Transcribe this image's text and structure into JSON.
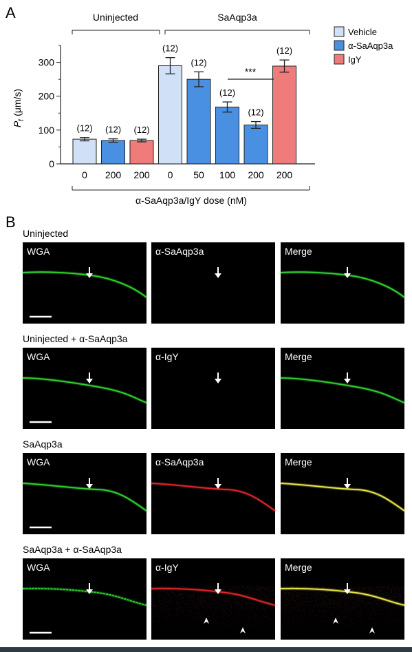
{
  "panel_a": {
    "label": "A",
    "group_labels": [
      "Uninjected",
      "SaAqp3a"
    ],
    "y_axis_label": "P",
    "y_axis_label_sub": "f",
    "y_axis_unit": "(μm/s)",
    "x_axis_label": "α-SaAqp3a/IgY dose (nM)",
    "significance": "***",
    "legend": [
      {
        "label": "Vehicle",
        "color": "#cfe0f7"
      },
      {
        "label": "α-SaAqp3a",
        "color": "#4a90e2"
      },
      {
        "label": "IgY",
        "color": "#f07b7b"
      }
    ]
  },
  "chart_data": {
    "type": "bar",
    "categories": [
      "0",
      "200",
      "200",
      "0",
      "50",
      "100",
      "200",
      "200"
    ],
    "groups": [
      "Uninjected",
      "Uninjected",
      "Uninjected",
      "SaAqp3a",
      "SaAqp3a",
      "SaAqp3a",
      "SaAqp3a",
      "SaAqp3a"
    ],
    "treatments": [
      "Vehicle",
      "α-SaAqp3a",
      "IgY",
      "Vehicle",
      "α-SaAqp3a",
      "α-SaAqp3a",
      "α-SaAqp3a",
      "IgY"
    ],
    "values": [
      73,
      69,
      69,
      290,
      250,
      168,
      115,
      289
    ],
    "errors": [
      5,
      5,
      4,
      24,
      22,
      15,
      10,
      18
    ],
    "n_labels": [
      "(12)",
      "(12)",
      "(12)",
      "(12)",
      "(12)",
      "(12)",
      "(12)",
      "(12)"
    ],
    "ylim": [
      0,
      350
    ],
    "yticks": [
      0,
      100,
      200,
      300
    ],
    "grid": false
  },
  "panel_b": {
    "label": "B",
    "rows": [
      {
        "title": "Uninjected",
        "panels": [
          "WGA",
          "α-SaAqp3a",
          "Merge"
        ]
      },
      {
        "title": "Uninjected + α-SaAqp3a",
        "panels": [
          "WGA",
          "α-IgY",
          "Merge"
        ]
      },
      {
        "title": "SaAqp3a",
        "panels": [
          "WGA",
          "α-SaAqp3a",
          "Merge"
        ]
      },
      {
        "title": "SaAqp3a + α-SaAqp3a",
        "panels": [
          "WGA",
          "α-IgY",
          "Merge"
        ]
      }
    ],
    "colors": {
      "wga": "#2fd22f",
      "red": "#e0262a",
      "merge": "#e8e84a"
    }
  }
}
